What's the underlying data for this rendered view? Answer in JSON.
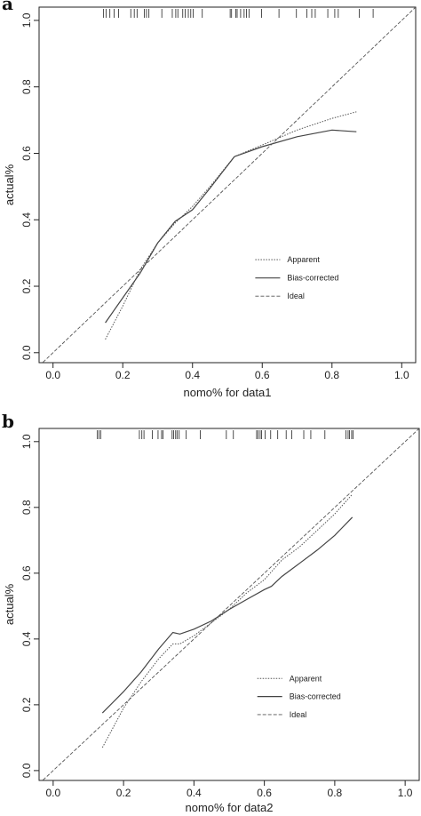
{
  "panels": [
    {
      "letter": "a"
    },
    {
      "letter": "b"
    }
  ],
  "chart_data": [
    {
      "type": "line",
      "panel": "a",
      "xlabel": "nomo% for data1",
      "ylabel": "actual%",
      "xlim": [
        -0.04,
        1.04
      ],
      "ylim": [
        -0.03,
        1.04
      ],
      "xticks": [
        0.0,
        0.2,
        0.4,
        0.6,
        0.8,
        1.0
      ],
      "yticks": [
        0.0,
        0.2,
        0.4,
        0.6,
        0.8,
        1.0
      ],
      "xtick_labels": [
        "0.0",
        "0.2",
        "0.4",
        "0.6",
        "0.8",
        "1.0"
      ],
      "ytick_labels": [
        "0.0",
        "0.2",
        "0.4",
        "0.6",
        "0.8",
        "1.0"
      ],
      "legend": [
        "Apparent",
        "Bias-corrected",
        "Ideal"
      ],
      "grid": false,
      "series": [
        {
          "name": "Apparent",
          "style": "dotted",
          "x": [
            0.15,
            0.2,
            0.25,
            0.3,
            0.35,
            0.4,
            0.45,
            0.52,
            0.6,
            0.7,
            0.8,
            0.87
          ],
          "y": [
            0.04,
            0.14,
            0.25,
            0.33,
            0.39,
            0.44,
            0.5,
            0.59,
            0.625,
            0.67,
            0.705,
            0.725
          ]
        },
        {
          "name": "Bias-corrected",
          "style": "solid",
          "x": [
            0.15,
            0.2,
            0.25,
            0.3,
            0.35,
            0.4,
            0.45,
            0.52,
            0.6,
            0.7,
            0.8,
            0.87
          ],
          "y": [
            0.09,
            0.165,
            0.24,
            0.33,
            0.395,
            0.43,
            0.495,
            0.59,
            0.62,
            0.65,
            0.67,
            0.665
          ]
        },
        {
          "name": "Ideal",
          "style": "dashed",
          "x": [
            -0.04,
            1.04
          ],
          "y": [
            -0.04,
            1.04
          ]
        }
      ],
      "rug": [
        0.145,
        0.152,
        0.163,
        0.175,
        0.188,
        0.223,
        0.233,
        0.241,
        0.262,
        0.268,
        0.275,
        0.312,
        0.342,
        0.352,
        0.358,
        0.372,
        0.379,
        0.388,
        0.395,
        0.402,
        0.428,
        0.508,
        0.512,
        0.524,
        0.528,
        0.538,
        0.548,
        0.555,
        0.562,
        0.598,
        0.648,
        0.698,
        0.728,
        0.742,
        0.752,
        0.788,
        0.808,
        0.818,
        0.878,
        0.918
      ]
    },
    {
      "type": "line",
      "panel": "b",
      "xlabel": "nomo% for data2",
      "ylabel": "actual%",
      "xlim": [
        -0.04,
        1.04
      ],
      "ylim": [
        -0.03,
        1.04
      ],
      "xticks": [
        0.0,
        0.2,
        0.4,
        0.6,
        0.8,
        1.0
      ],
      "yticks": [
        0.0,
        0.2,
        0.4,
        0.6,
        0.8,
        1.0
      ],
      "xtick_labels": [
        "0.0",
        "0.2",
        "0.4",
        "0.6",
        "0.8",
        "1.0"
      ],
      "ytick_labels": [
        "0.0",
        "0.2",
        "0.4",
        "0.6",
        "0.8",
        "1.0"
      ],
      "legend": [
        "Apparent",
        "Bias-corrected",
        "Ideal"
      ],
      "grid": false,
      "series": [
        {
          "name": "Apparent",
          "style": "dotted",
          "x": [
            0.14,
            0.2,
            0.25,
            0.3,
            0.34,
            0.36,
            0.4,
            0.45,
            0.5,
            0.55,
            0.6,
            0.65,
            0.7,
            0.75,
            0.8,
            0.85
          ],
          "y": [
            0.07,
            0.19,
            0.27,
            0.34,
            0.385,
            0.385,
            0.41,
            0.45,
            0.49,
            0.54,
            0.58,
            0.64,
            0.68,
            0.73,
            0.78,
            0.84
          ]
        },
        {
          "name": "Bias-corrected",
          "style": "solid",
          "x": [
            0.14,
            0.2,
            0.25,
            0.3,
            0.34,
            0.36,
            0.4,
            0.45,
            0.5,
            0.55,
            0.6,
            0.62,
            0.65,
            0.7,
            0.75,
            0.8,
            0.85
          ],
          "y": [
            0.175,
            0.24,
            0.3,
            0.37,
            0.42,
            0.415,
            0.43,
            0.455,
            0.49,
            0.52,
            0.55,
            0.56,
            0.59,
            0.63,
            0.67,
            0.715,
            0.77
          ]
        },
        {
          "name": "Ideal",
          "style": "dashed",
          "x": [
            -0.04,
            1.04
          ],
          "y": [
            -0.04,
            1.04
          ]
        }
      ],
      "rug": [
        0.125,
        0.13,
        0.135,
        0.245,
        0.252,
        0.258,
        0.282,
        0.298,
        0.308,
        0.312,
        0.338,
        0.342,
        0.348,
        0.352,
        0.358,
        0.378,
        0.418,
        0.492,
        0.512,
        0.578,
        0.582,
        0.588,
        0.592,
        0.602,
        0.618,
        0.638,
        0.662,
        0.678,
        0.712,
        0.732,
        0.772,
        0.832,
        0.838,
        0.842,
        0.848,
        0.852
      ]
    }
  ]
}
